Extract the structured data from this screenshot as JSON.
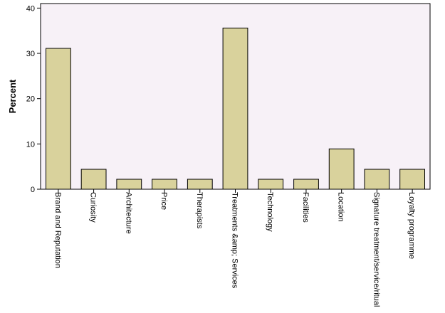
{
  "chart_data": {
    "type": "bar",
    "title": "",
    "xlabel": "",
    "ylabel": "Percent",
    "ylim": [
      0,
      41
    ],
    "yticks": [
      0,
      10,
      20,
      30,
      40
    ],
    "grid": false,
    "categories": [
      "Brand and Reputation",
      "Curiosity",
      "Architecture",
      "Price",
      "Therapists",
      "Treatments &amp; Services",
      "Technology",
      "Facilities",
      "Location",
      "Signature treatment/service/ritual",
      "Loyalty programme"
    ],
    "values": [
      31.1,
      4.4,
      2.2,
      2.2,
      2.2,
      35.6,
      2.2,
      2.2,
      8.9,
      4.4,
      4.4
    ],
    "colors": {
      "bar_fill": "#d9d29c",
      "bar_stroke": "#000000",
      "plot_background": "#f7f1f7",
      "axis": "#000000"
    }
  }
}
